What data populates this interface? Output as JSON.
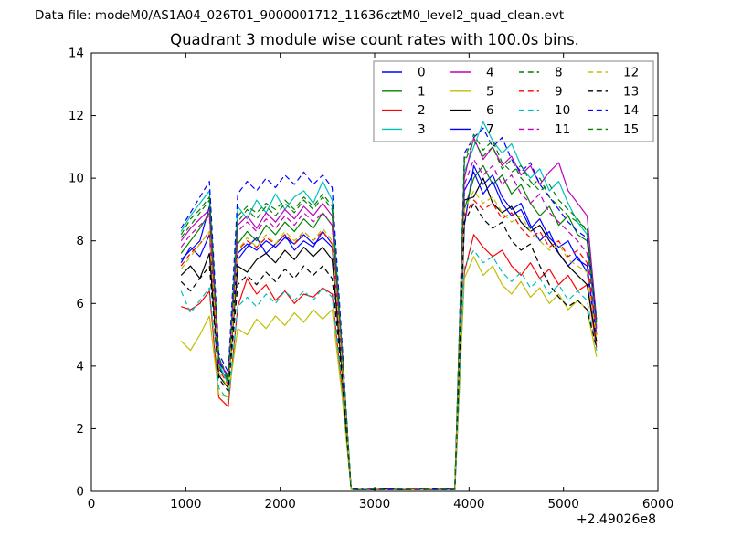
{
  "header": {
    "data_file_label": "Data file: modeM0/AS1A04_026T01_9000001712_11636cztM0_level2_quad_clean.evt"
  },
  "chart_data": {
    "type": "line",
    "title": "Quadrant 3 module wise count rates with 100.0s bins.",
    "xlabel": "",
    "ylabel": "",
    "xlim": [
      0,
      6000
    ],
    "ylim": [
      0,
      14
    ],
    "x_ticks": [
      0,
      1000,
      2000,
      3000,
      4000,
      5000,
      6000
    ],
    "y_ticks": [
      0,
      2,
      4,
      6,
      8,
      10,
      12,
      14
    ],
    "x_offset_label": "+2.49026e8",
    "grid": false,
    "legend": {
      "position": "upper center",
      "columns": 4,
      "frame_color": "#999999"
    },
    "axis_color": "#000000",
    "x": [
      950,
      1050,
      1150,
      1250,
      1350,
      1450,
      1550,
      1650,
      1750,
      1850,
      1950,
      2050,
      2150,
      2250,
      2350,
      2450,
      2550,
      2650,
      2750,
      2850,
      2950,
      3050,
      3150,
      3250,
      3350,
      3450,
      3550,
      3650,
      3750,
      3850,
      3950,
      4050,
      4150,
      4250,
      4350,
      4450,
      4550,
      4650,
      4750,
      4850,
      4950,
      5050,
      5150,
      5250,
      5350
    ],
    "series": [
      {
        "name": "0",
        "color": "#0000ff",
        "dash": false,
        "values": [
          7.4,
          7.7,
          8.0,
          9.1,
          3.9,
          3.6,
          7.4,
          7.8,
          8.1,
          7.6,
          7.9,
          8.2,
          7.7,
          8.0,
          7.8,
          8.3,
          7.9,
          4.2,
          0.1,
          0.1,
          0.05,
          0.1,
          0.05,
          0.1,
          0.1,
          0.05,
          0.1,
          0.05,
          0.1,
          0.1,
          8.5,
          10.4,
          9.8,
          10.1,
          9.4,
          9.0,
          9.2,
          8.5,
          8.0,
          8.3,
          7.6,
          7.2,
          7.5,
          7.0,
          5.0
        ]
      },
      {
        "name": "1",
        "color": "#008000",
        "dash": false,
        "values": [
          7.6,
          8.0,
          8.4,
          8.9,
          4.0,
          3.5,
          7.9,
          8.3,
          8.0,
          8.5,
          8.2,
          8.6,
          8.3,
          8.7,
          8.4,
          8.9,
          8.5,
          4.5,
          0.1,
          0.05,
          0.1,
          0.1,
          0.05,
          0.1,
          0.05,
          0.1,
          0.1,
          0.05,
          0.1,
          0.1,
          9.0,
          10.0,
          10.4,
          9.8,
          10.1,
          9.5,
          9.8,
          9.2,
          8.8,
          9.1,
          8.5,
          8.8,
          8.2,
          8.0,
          5.2
        ]
      },
      {
        "name": "2",
        "color": "#ff0000",
        "dash": false,
        "values": [
          5.9,
          5.8,
          6.0,
          6.4,
          3.0,
          2.7,
          5.9,
          6.8,
          6.3,
          6.6,
          6.1,
          6.4,
          6.0,
          6.3,
          6.2,
          6.5,
          6.3,
          3.4,
          0.1,
          0.1,
          0.05,
          0.1,
          0.1,
          0.05,
          0.1,
          0.1,
          0.05,
          0.1,
          0.1,
          0.05,
          7.0,
          8.2,
          7.8,
          7.5,
          7.7,
          7.2,
          6.9,
          7.3,
          6.8,
          7.1,
          6.6,
          6.9,
          6.4,
          6.6,
          4.6
        ]
      },
      {
        "name": "3",
        "color": "#00bfbf",
        "dash": false,
        "values": [
          8.3,
          8.8,
          9.2,
          9.6,
          4.1,
          3.4,
          9.1,
          8.7,
          9.3,
          8.9,
          9.5,
          9.0,
          9.4,
          9.6,
          9.2,
          9.9,
          9.3,
          4.8,
          0.1,
          0.05,
          0.1,
          0.1,
          0.05,
          0.1,
          0.1,
          0.05,
          0.1,
          0.1,
          0.05,
          0.1,
          10.2,
          11.0,
          11.8,
          11.2,
          10.8,
          11.1,
          10.4,
          10.0,
          10.3,
          9.6,
          9.9,
          9.2,
          8.6,
          8.2,
          5.3
        ]
      },
      {
        "name": "4",
        "color": "#bf00bf",
        "dash": false,
        "values": [
          8.0,
          8.4,
          8.7,
          9.0,
          4.2,
          3.6,
          8.5,
          8.8,
          8.4,
          8.9,
          8.6,
          9.0,
          8.7,
          9.1,
          8.8,
          9.2,
          8.8,
          4.7,
          0.1,
          0.1,
          0.05,
          0.1,
          0.05,
          0.1,
          0.1,
          0.05,
          0.1,
          0.05,
          0.1,
          0.1,
          10.0,
          11.3,
          10.6,
          11.0,
          10.4,
          10.7,
          10.1,
          10.4,
          9.8,
          10.2,
          10.5,
          9.6,
          9.2,
          8.8,
          5.5
        ]
      },
      {
        "name": "5",
        "color": "#bfbf00",
        "dash": false,
        "values": [
          4.8,
          4.5,
          5.0,
          5.6,
          3.1,
          3.0,
          5.2,
          5.0,
          5.5,
          5.2,
          5.6,
          5.3,
          5.7,
          5.4,
          5.8,
          5.5,
          5.8,
          3.2,
          0.1,
          0.05,
          0.1,
          0.1,
          0.05,
          0.1,
          0.1,
          0.05,
          0.1,
          0.1,
          0.05,
          0.1,
          6.8,
          7.5,
          6.9,
          7.2,
          6.6,
          6.3,
          6.7,
          6.2,
          6.5,
          6.0,
          6.3,
          5.8,
          6.1,
          5.8,
          4.3
        ]
      },
      {
        "name": "6",
        "color": "#000000",
        "dash": false,
        "values": [
          6.9,
          7.2,
          6.8,
          7.6,
          3.7,
          3.3,
          7.2,
          7.0,
          7.4,
          7.6,
          7.3,
          7.7,
          7.4,
          7.8,
          7.5,
          7.8,
          7.4,
          4.0,
          0.1,
          0.1,
          0.05,
          0.1,
          0.1,
          0.05,
          0.1,
          0.05,
          0.1,
          0.1,
          0.05,
          0.1,
          9.3,
          9.4,
          10.0,
          9.2,
          8.9,
          9.1,
          8.6,
          8.3,
          8.5,
          8.0,
          7.6,
          7.2,
          6.9,
          6.6,
          4.8
        ]
      },
      {
        "name": "7",
        "color": "#0000ff",
        "dash": false,
        "values": [
          7.3,
          7.8,
          7.5,
          8.2,
          4.1,
          3.7,
          7.6,
          7.9,
          7.7,
          8.0,
          7.8,
          8.1,
          7.9,
          8.2,
          7.9,
          8.1,
          7.8,
          4.3,
          0.1,
          0.05,
          0.1,
          0.05,
          0.1,
          0.1,
          0.05,
          0.1,
          0.1,
          0.05,
          0.1,
          0.1,
          9.6,
          10.2,
          9.5,
          9.9,
          9.2,
          8.8,
          9.0,
          8.4,
          8.7,
          8.1,
          7.8,
          8.0,
          7.4,
          7.2,
          5.0
        ]
      },
      {
        "name": "8",
        "color": "#008000",
        "dash": true,
        "values": [
          8.1,
          8.5,
          8.9,
          9.3,
          4.3,
          3.5,
          8.6,
          9.0,
          8.7,
          9.1,
          8.8,
          9.2,
          8.9,
          9.3,
          9.0,
          9.4,
          9.0,
          4.6,
          0.1,
          0.1,
          0.05,
          0.1,
          0.05,
          0.1,
          0.1,
          0.05,
          0.1,
          0.1,
          0.05,
          0.1,
          10.5,
          11.2,
          10.7,
          11.0,
          10.3,
          10.6,
          10.0,
          9.7,
          10.0,
          9.4,
          9.1,
          8.8,
          8.6,
          8.4,
          5.4
        ]
      },
      {
        "name": "9",
        "color": "#ff0000",
        "dash": true,
        "values": [
          7.2,
          7.6,
          7.9,
          8.3,
          3.9,
          3.4,
          7.7,
          8.0,
          7.8,
          8.1,
          7.9,
          8.2,
          7.9,
          8.3,
          8.0,
          8.3,
          7.9,
          4.4,
          0.1,
          0.05,
          0.1,
          0.1,
          0.05,
          0.1,
          0.05,
          0.1,
          0.1,
          0.05,
          0.1,
          0.1,
          8.8,
          9.3,
          9.0,
          9.2,
          8.7,
          8.9,
          8.4,
          8.1,
          8.3,
          7.8,
          8.0,
          7.5,
          7.7,
          7.3,
          5.0
        ]
      },
      {
        "name": "10",
        "color": "#00bfbf",
        "dash": true,
        "values": [
          6.4,
          5.7,
          6.1,
          6.5,
          3.3,
          2.9,
          5.9,
          6.2,
          5.9,
          6.3,
          6.0,
          6.4,
          6.1,
          6.4,
          6.1,
          6.5,
          6.2,
          3.5,
          0.1,
          0.1,
          0.05,
          0.1,
          0.1,
          0.05,
          0.1,
          0.1,
          0.05,
          0.1,
          0.1,
          0.05,
          7.2,
          7.7,
          7.3,
          7.5,
          7.0,
          6.7,
          7.0,
          6.5,
          6.8,
          6.3,
          6.6,
          6.1,
          6.4,
          6.1,
          4.5
        ]
      },
      {
        "name": "11",
        "color": "#bf00bf",
        "dash": true,
        "values": [
          7.8,
          8.2,
          8.5,
          8.8,
          4.2,
          3.6,
          8.3,
          8.6,
          8.3,
          8.7,
          8.4,
          8.8,
          8.5,
          8.9,
          8.6,
          8.9,
          8.5,
          4.5,
          0.1,
          0.05,
          0.1,
          0.05,
          0.1,
          0.1,
          0.05,
          0.1,
          0.05,
          0.1,
          0.1,
          0.05,
          9.8,
          10.6,
          10.1,
          10.4,
          9.8,
          10.1,
          9.5,
          9.2,
          9.5,
          8.9,
          8.6,
          8.3,
          8.0,
          7.6,
          5.2
        ]
      },
      {
        "name": "12",
        "color": "#bfbf00",
        "dash": true,
        "values": [
          7.1,
          7.5,
          7.9,
          8.3,
          3.8,
          3.3,
          7.7,
          8.1,
          7.8,
          8.2,
          7.9,
          8.3,
          8.0,
          8.3,
          8.0,
          8.4,
          8.0,
          4.3,
          0.1,
          0.1,
          0.05,
          0.1,
          0.05,
          0.1,
          0.1,
          0.05,
          0.1,
          0.1,
          0.05,
          0.1,
          9.0,
          9.6,
          9.2,
          9.4,
          8.9,
          8.6,
          8.8,
          8.3,
          8.0,
          7.7,
          7.9,
          7.4,
          7.2,
          7.0,
          4.9
        ]
      },
      {
        "name": "13",
        "color": "#000000",
        "dash": true,
        "values": [
          6.7,
          6.4,
          6.8,
          7.2,
          3.6,
          3.2,
          6.6,
          6.9,
          6.6,
          7.0,
          6.7,
          7.1,
          6.8,
          7.2,
          6.9,
          7.2,
          6.8,
          3.8,
          0.1,
          0.05,
          0.1,
          0.1,
          0.05,
          0.1,
          0.1,
          0.05,
          0.1,
          0.05,
          0.1,
          0.1,
          8.6,
          9.2,
          8.7,
          8.4,
          8.6,
          8.0,
          7.7,
          7.9,
          7.2,
          6.6,
          6.2,
          5.9,
          6.1,
          5.8,
          4.6
        ]
      },
      {
        "name": "14",
        "color": "#0000ff",
        "dash": true,
        "values": [
          8.4,
          8.9,
          9.4,
          9.9,
          4.4,
          3.8,
          9.5,
          9.9,
          9.6,
          10.0,
          9.7,
          10.1,
          9.8,
          10.2,
          9.8,
          10.1,
          9.7,
          5.0,
          0.1,
          0.1,
          0.05,
          0.1,
          0.1,
          0.05,
          0.1,
          0.05,
          0.1,
          0.1,
          0.05,
          0.1,
          10.8,
          11.3,
          11.6,
          11.0,
          11.3,
          10.6,
          10.2,
          10.5,
          9.8,
          9.4,
          9.0,
          8.6,
          8.3,
          8.1,
          5.5
        ]
      },
      {
        "name": "15",
        "color": "#008000",
        "dash": true,
        "values": [
          8.2,
          8.7,
          9.0,
          9.4,
          4.3,
          3.6,
          8.8,
          9.1,
          8.9,
          9.2,
          9.0,
          9.3,
          9.0,
          9.4,
          9.1,
          9.5,
          9.1,
          4.7,
          0.1,
          0.05,
          0.1,
          0.1,
          0.05,
          0.1,
          0.1,
          0.05,
          0.1,
          0.05,
          0.1,
          0.1,
          10.6,
          11.4,
          10.9,
          11.2,
          10.5,
          10.2,
          10.4,
          9.9,
          9.6,
          9.8,
          9.3,
          9.0,
          8.7,
          8.3,
          5.4
        ]
      }
    ]
  }
}
